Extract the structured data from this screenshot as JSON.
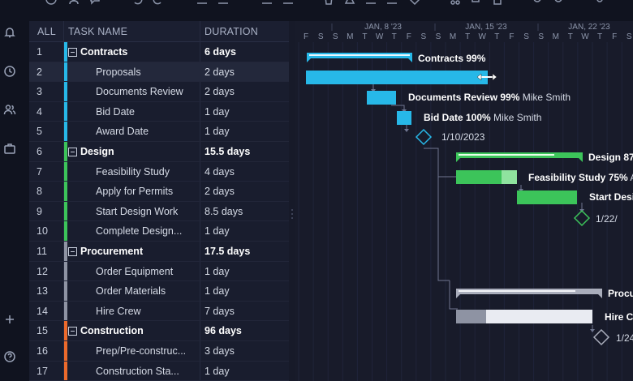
{
  "grid": {
    "headers": {
      "all": "ALL",
      "task_name": "TASK NAME",
      "duration": "DURATION"
    },
    "rows": [
      {
        "num": "1",
        "name": "Contracts",
        "duration": "6 days",
        "summary": true,
        "color": "#27b8e8"
      },
      {
        "num": "2",
        "name": "Proposals",
        "duration": "2 days",
        "summary": false,
        "color": "#27b8e8"
      },
      {
        "num": "3",
        "name": "Documents Review",
        "duration": "2 days",
        "summary": false,
        "color": "#27b8e8"
      },
      {
        "num": "4",
        "name": "Bid Date",
        "duration": "1 day",
        "summary": false,
        "color": "#27b8e8"
      },
      {
        "num": "5",
        "name": "Award Date",
        "duration": "1 day",
        "summary": false,
        "color": "#27b8e8"
      },
      {
        "num": "6",
        "name": "Design",
        "duration": "15.5 days",
        "summary": true,
        "color": "#3cc45a"
      },
      {
        "num": "7",
        "name": "Feasibility Study",
        "duration": "4 days",
        "summary": false,
        "color": "#3cc45a"
      },
      {
        "num": "8",
        "name": "Apply for Permits",
        "duration": "2 days",
        "summary": false,
        "color": "#3cc45a"
      },
      {
        "num": "9",
        "name": "Start Design Work",
        "duration": "8.5 days",
        "summary": false,
        "color": "#3cc45a"
      },
      {
        "num": "10",
        "name": "Complete Design...",
        "duration": "1 day",
        "summary": false,
        "color": "#3cc45a"
      },
      {
        "num": "11",
        "name": "Procurement",
        "duration": "17.5 days",
        "summary": true,
        "color": "#8e93a3"
      },
      {
        "num": "12",
        "name": "Order Equipment",
        "duration": "1 day",
        "summary": false,
        "color": "#8e93a3"
      },
      {
        "num": "13",
        "name": "Order Materials",
        "duration": "1 day",
        "summary": false,
        "color": "#8e93a3"
      },
      {
        "num": "14",
        "name": "Hire Crew",
        "duration": "7 days",
        "summary": false,
        "color": "#8e93a3"
      },
      {
        "num": "15",
        "name": "Construction",
        "duration": "96 days",
        "summary": true,
        "color": "#ec6a2c"
      },
      {
        "num": "16",
        "name": "Prep/Pre-construc...",
        "duration": "3 days",
        "summary": false,
        "color": "#ec6a2c"
      },
      {
        "num": "17",
        "name": "Construction Sta...",
        "duration": "1 day",
        "summary": false,
        "color": "#ec6a2c"
      }
    ]
  },
  "timeline": {
    "weeks": [
      "JAN, 8 '23",
      "JAN, 15 '23",
      "JAN, 22 '23"
    ],
    "days": [
      "F",
      "S",
      "S",
      "M",
      "T",
      "W",
      "T",
      "F",
      "S",
      "S",
      "M",
      "T",
      "W",
      "T",
      "F",
      "S",
      "S",
      "M",
      "T",
      "W",
      "T",
      "F",
      "S"
    ]
  },
  "gantt_labels": {
    "contracts": "Contracts 99%",
    "docs_review": "Documents Review 99%",
    "docs_review_user": "Mike Smith",
    "bid_date": "Bid Date 100%",
    "bid_date_user": "Mike Smith",
    "award_milestone": "1/10/2023",
    "design": "Design 87",
    "feasibility": "Feasibility Study 75%",
    "feasibility_user": "A",
    "start_design": "Start Desi",
    "design_milestone": "1/22/",
    "procurement": "Procu",
    "hire_crew": "Hire Cr",
    "hire_milestone": "1/24"
  },
  "colors": {
    "contracts": "#27b8e8",
    "design": "#3cc45a",
    "procurement": "#8e93a3",
    "construction": "#ec6a2c"
  }
}
